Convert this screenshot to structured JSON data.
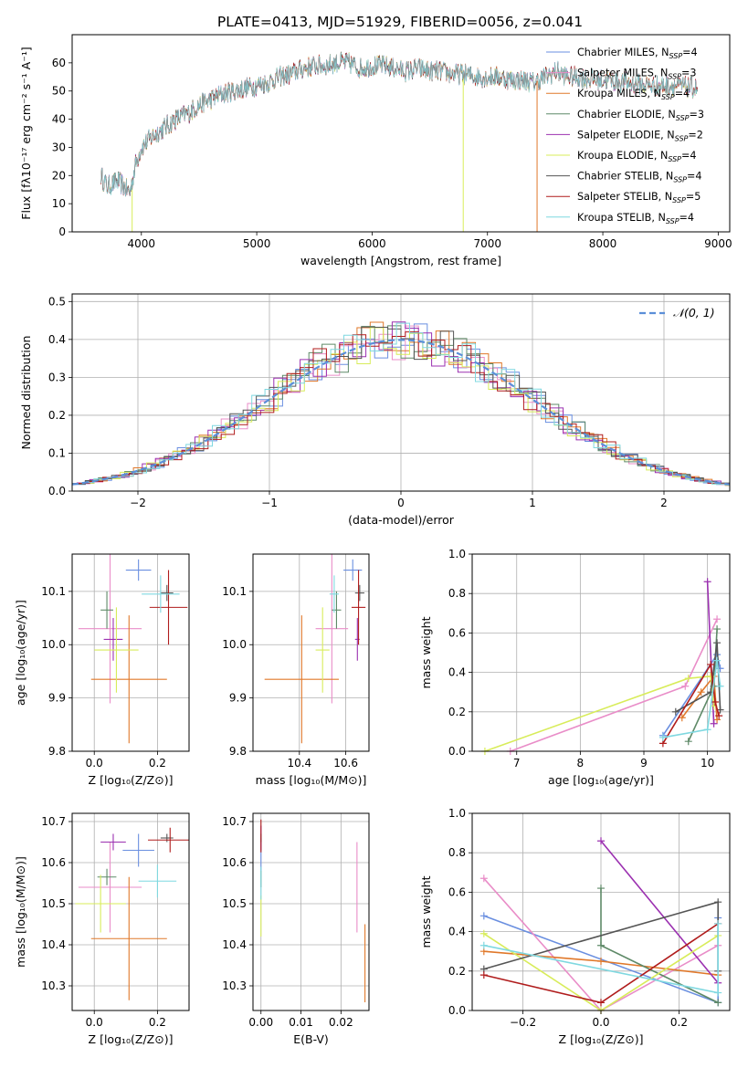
{
  "figure": {
    "title": "PLATE=0413, MJD=51929, FIBERID=0056, z=0.041"
  },
  "models": [
    {
      "name": "Chabrier MILES",
      "nssp": "4",
      "color": "#6a8fe0"
    },
    {
      "name": "Salpeter MILES",
      "nssp": "3",
      "color": "#e98dc8"
    },
    {
      "name": "Kroupa MILES",
      "nssp": "4",
      "color": "#e0782a"
    },
    {
      "name": "Chabrier ELODIE",
      "nssp": "3",
      "color": "#5f8a68"
    },
    {
      "name": "Salpeter ELODIE",
      "nssp": "2",
      "color": "#9b30b0"
    },
    {
      "name": "Kroupa ELODIE",
      "nssp": "4",
      "color": "#d8ec5a"
    },
    {
      "name": "Chabrier STELIB",
      "nssp": "4",
      "color": "#555555"
    },
    {
      "name": "Salpeter STELIB",
      "nssp": "5",
      "color": "#b01c1c"
    },
    {
      "name": "Kroupa STELIB",
      "nssp": "4",
      "color": "#7fd8e0"
    }
  ],
  "chart_data": [
    {
      "id": "spectrum",
      "type": "line",
      "xlabel": "wavelength [Angstrom, rest frame]",
      "ylabel": "Flux [fλ10⁻¹⁷ erg cm⁻² s⁻¹ A⁻¹]",
      "xlim": [
        3400,
        9100
      ],
      "ylim": [
        0,
        70
      ],
      "xticks": [
        4000,
        5000,
        6000,
        7000,
        8000,
        9000
      ],
      "yticks": [
        0,
        10,
        20,
        30,
        40,
        50,
        60
      ],
      "grid": false,
      "legend": "upper right",
      "continuum": [
        [
          3650,
          20
        ],
        [
          3700,
          16
        ],
        [
          3800,
          18
        ],
        [
          3900,
          14
        ],
        [
          3950,
          24
        ],
        [
          4000,
          30
        ],
        [
          4100,
          34
        ],
        [
          4200,
          37
        ],
        [
          4300,
          40
        ],
        [
          4400,
          42
        ],
        [
          4500,
          45
        ],
        [
          4600,
          47
        ],
        [
          4700,
          49
        ],
        [
          4800,
          50
        ],
        [
          4900,
          51
        ],
        [
          5000,
          52
        ],
        [
          5100,
          53
        ],
        [
          5200,
          55
        ],
        [
          5300,
          56
        ],
        [
          5400,
          58
        ],
        [
          5500,
          59
        ],
        [
          5600,
          59
        ],
        [
          5700,
          60
        ],
        [
          5800,
          60
        ],
        [
          5900,
          58
        ],
        [
          6000,
          59
        ],
        [
          6100,
          59
        ],
        [
          6200,
          58
        ],
        [
          6300,
          57
        ],
        [
          6400,
          58
        ],
        [
          6500,
          57
        ],
        [
          6600,
          57
        ],
        [
          6700,
          56
        ],
        [
          6800,
          56
        ],
        [
          6900,
          55
        ],
        [
          7000,
          55
        ],
        [
          7100,
          55
        ],
        [
          7200,
          54
        ],
        [
          7300,
          54
        ],
        [
          7400,
          53
        ],
        [
          7500,
          55
        ],
        [
          7600,
          57
        ],
        [
          7700,
          55
        ],
        [
          7800,
          55
        ],
        [
          7900,
          54
        ],
        [
          8000,
          54
        ],
        [
          8200,
          53
        ],
        [
          8400,
          52
        ],
        [
          8600,
          52
        ],
        [
          8800,
          51
        ]
      ],
      "dropouts": [
        [
          3920,
          0
        ],
        [
          6790,
          0
        ],
        [
          7430,
          0
        ]
      ]
    },
    {
      "id": "residuals",
      "type": "histogram",
      "xlabel": "(data-model)/error",
      "ylabel": "Normed distribution",
      "xlim": [
        -2.5,
        2.5
      ],
      "ylim": [
        0,
        0.52
      ],
      "xticks": [
        -2,
        -1,
        0,
        1,
        2
      ],
      "yticks": [
        0.0,
        0.1,
        0.2,
        0.3,
        0.4,
        0.5
      ],
      "grid": true,
      "legend": "upper right",
      "reference": {
        "name": "𝒩(0, 1)",
        "mean": 0,
        "sigma": 1,
        "color": "#5b8fd8"
      }
    },
    {
      "id": "age_vs_z",
      "type": "errorbar",
      "xlabel": "Z [log₁₀(Z/Z⊙)]",
      "ylabel": "age  [log₁₀(age/yr)]",
      "xlim": [
        -0.07,
        0.3
      ],
      "ylim": [
        9.8,
        10.17
      ],
      "xticks": [
        0.0,
        0.2
      ],
      "yticks": [
        9.8,
        9.9,
        10.0,
        10.1
      ],
      "grid": true,
      "points": [
        {
          "x": 0.14,
          "y": 10.14,
          "xerr": 0.04,
          "yerr": 0.02
        },
        {
          "x": 0.05,
          "y": 10.03,
          "xerr": 0.1,
          "yerr": 0.14
        },
        {
          "x": 0.11,
          "y": 9.935,
          "xerr": 0.12,
          "yerr": 0.12
        },
        {
          "x": 0.04,
          "y": 10.065,
          "xerr": 0.02,
          "yerr": 0.035
        },
        {
          "x": 0.06,
          "y": 10.01,
          "xerr": 0.03,
          "yerr": 0.04
        },
        {
          "x": 0.07,
          "y": 9.99,
          "xerr": 0.07,
          "yerr": 0.08
        },
        {
          "x": 0.23,
          "y": 10.097,
          "xerr": 0.02,
          "yerr": 0.015
        },
        {
          "x": 0.235,
          "y": 10.07,
          "xerr": 0.06,
          "yerr": 0.07
        },
        {
          "x": 0.21,
          "y": 10.095,
          "xerr": 0.06,
          "yerr": 0.035
        }
      ]
    },
    {
      "id": "age_vs_mass",
      "type": "errorbar",
      "xlabel": "mass [log₁₀(M/M⊙)]",
      "ylabel": "",
      "xlim": [
        10.2,
        10.7
      ],
      "ylim": [
        9.8,
        10.17
      ],
      "xticks": [
        10.4,
        10.6
      ],
      "yticks": [
        9.8,
        9.9,
        10.0,
        10.1
      ],
      "grid": true,
      "points": [
        {
          "x": 10.63,
          "y": 10.14,
          "xerr": 0.04,
          "yerr": 0.02
        },
        {
          "x": 10.54,
          "y": 10.03,
          "xerr": 0.07,
          "yerr": 0.14
        },
        {
          "x": 10.41,
          "y": 9.935,
          "xerr": 0.16,
          "yerr": 0.12
        },
        {
          "x": 10.56,
          "y": 10.065,
          "xerr": 0.02,
          "yerr": 0.035
        },
        {
          "x": 10.65,
          "y": 10.01,
          "xerr": 0.01,
          "yerr": 0.04
        },
        {
          "x": 10.5,
          "y": 9.99,
          "xerr": 0.03,
          "yerr": 0.08
        },
        {
          "x": 10.66,
          "y": 10.097,
          "xerr": 0.02,
          "yerr": 0.015
        },
        {
          "x": 10.655,
          "y": 10.07,
          "xerr": 0.03,
          "yerr": 0.07
        },
        {
          "x": 10.55,
          "y": 10.095,
          "xerr": 0.02,
          "yerr": 0.035
        }
      ]
    },
    {
      "id": "weight_vs_age",
      "type": "line",
      "xlabel": "age  [log₁₀(age/yr)]",
      "ylabel": "mass weight",
      "xlim": [
        6.3,
        10.35
      ],
      "ylim": [
        0,
        1
      ],
      "xticks": [
        7,
        8,
        9,
        10
      ],
      "yticks": [
        0.0,
        0.2,
        0.4,
        0.6,
        0.8,
        1.0
      ],
      "grid": true,
      "series": [
        [
          [
            9.3,
            0.08
          ],
          [
            10.15,
            0.49
          ],
          [
            10.2,
            0.42
          ]
        ],
        [
          [
            6.9,
            0.0
          ],
          [
            9.65,
            0.33
          ],
          [
            10.15,
            0.67
          ]
        ],
        [
          [
            9.6,
            0.17
          ],
          [
            9.9,
            0.3
          ],
          [
            10.1,
            0.38
          ],
          [
            10.15,
            0.16
          ]
        ],
        [
          [
            9.7,
            0.05
          ],
          [
            10.1,
            0.33
          ],
          [
            10.15,
            0.62
          ]
        ],
        [
          [
            10.0,
            0.86
          ],
          [
            10.1,
            0.14
          ]
        ],
        [
          [
            6.5,
            0.0
          ],
          [
            9.7,
            0.37
          ],
          [
            10.05,
            0.38
          ],
          [
            10.1,
            0.23
          ]
        ],
        [
          [
            9.5,
            0.2
          ],
          [
            10.05,
            0.3
          ],
          [
            10.15,
            0.55
          ],
          [
            10.2,
            0.21
          ]
        ],
        [
          [
            9.3,
            0.04
          ],
          [
            10.05,
            0.44
          ],
          [
            10.12,
            0.25
          ],
          [
            10.18,
            0.18
          ]
        ],
        [
          [
            9.3,
            0.07
          ],
          [
            10.0,
            0.11
          ],
          [
            10.15,
            0.46
          ],
          [
            10.2,
            0.33
          ]
        ]
      ]
    },
    {
      "id": "mass_vs_z",
      "type": "errorbar",
      "xlabel": "Z [log₁₀(Z/Z⊙)]",
      "ylabel": "mass [log₁₀(M/M⊙)]",
      "xlim": [
        -0.07,
        0.3
      ],
      "ylim": [
        10.24,
        10.72
      ],
      "xticks": [
        0.0,
        0.2
      ],
      "yticks": [
        10.3,
        10.4,
        10.5,
        10.6,
        10.7
      ],
      "grid": true,
      "points": [
        {
          "x": 0.14,
          "y": 10.63,
          "xerr": 0.05,
          "yerr": 0.04
        },
        {
          "x": 0.05,
          "y": 10.54,
          "xerr": 0.1,
          "yerr": 0.11
        },
        {
          "x": 0.11,
          "y": 10.415,
          "xerr": 0.12,
          "yerr": 0.15
        },
        {
          "x": 0.04,
          "y": 10.565,
          "xerr": 0.03,
          "yerr": 0.02
        },
        {
          "x": 0.06,
          "y": 10.65,
          "xerr": 0.04,
          "yerr": 0.02
        },
        {
          "x": 0.02,
          "y": 10.5,
          "xerr": 0.08,
          "yerr": 0.07
        },
        {
          "x": 0.23,
          "y": 10.66,
          "xerr": 0.02,
          "yerr": 0.01
        },
        {
          "x": 0.24,
          "y": 10.655,
          "xerr": 0.07,
          "yerr": 0.03
        },
        {
          "x": 0.2,
          "y": 10.555,
          "xerr": 0.06,
          "yerr": 0.04
        }
      ]
    },
    {
      "id": "mass_vs_ebv",
      "type": "errorbar",
      "xlabel": "E(B-V)",
      "ylabel": "",
      "xlim": [
        -0.002,
        0.027
      ],
      "ylim": [
        10.24,
        10.72
      ],
      "xticks": [
        0.0,
        0.01,
        0.02
      ],
      "yticks": [
        10.3,
        10.4,
        10.5,
        10.6,
        10.7
      ],
      "grid": true,
      "points": [
        {
          "x": 0.0,
          "y": 10.62,
          "xerr": 0.0,
          "yerr": 0.04
        },
        {
          "x": 0.024,
          "y": 10.54,
          "xerr": 0.0,
          "yerr": 0.11
        },
        {
          "x": 0.026,
          "y": 10.355,
          "xerr": 0.0,
          "yerr": 0.095
        },
        {
          "x": 0.0,
          "y": 10.56,
          "xerr": 0.0,
          "yerr": 0.02
        },
        {
          "x": 0.0,
          "y": 10.66,
          "xerr": 0.0,
          "yerr": 0.03
        },
        {
          "x": 0.0,
          "y": 10.47,
          "xerr": 0.0,
          "yerr": 0.05
        },
        {
          "x": 0.0,
          "y": 10.66,
          "xerr": 0.0,
          "yerr": 0.01
        },
        {
          "x": 0.0,
          "y": 10.665,
          "xerr": 0.0,
          "yerr": 0.04
        },
        {
          "x": 0.0,
          "y": 10.55,
          "xerr": 0.0,
          "yerr": 0.04
        }
      ]
    },
    {
      "id": "weight_vs_z",
      "type": "line",
      "xlabel": "Z [log₁₀(Z/Z⊙)]",
      "ylabel": "mass weight",
      "xlim": [
        -0.33,
        0.33
      ],
      "ylim": [
        0,
        1
      ],
      "xticks": [
        -0.2,
        0.0,
        0.2
      ],
      "yticks": [
        0.0,
        0.2,
        0.4,
        0.6,
        0.8,
        1.0
      ],
      "grid": true,
      "series": [
        [
          [
            -0.3,
            0.48
          ],
          [
            0.3,
            0.04
          ],
          [
            0.3,
            0.47
          ]
        ],
        [
          [
            -0.3,
            0.67
          ],
          [
            0.0,
            0.0
          ],
          [
            0.3,
            0.33
          ]
        ],
        [
          [
            -0.3,
            0.3
          ],
          [
            0.0,
            0.25
          ],
          [
            0.3,
            0.18
          ]
        ],
        [
          [
            0.0,
            0.62
          ],
          [
            0.0,
            0.33
          ],
          [
            0.3,
            0.04
          ]
        ],
        [
          [
            0.0,
            0.86
          ],
          [
            0.3,
            0.14
          ]
        ],
        [
          [
            -0.3,
            0.39
          ],
          [
            0.0,
            0.0
          ],
          [
            0.3,
            0.38
          ]
        ],
        [
          [
            -0.3,
            0.21
          ],
          [
            0.3,
            0.55
          ],
          [
            0.3,
            0.2
          ]
        ],
        [
          [
            -0.3,
            0.18
          ],
          [
            0.0,
            0.04
          ],
          [
            0.3,
            0.44
          ]
        ],
        [
          [
            -0.3,
            0.33
          ],
          [
            0.3,
            0.09
          ],
          [
            0.3,
            0.44
          ]
        ]
      ]
    }
  ]
}
